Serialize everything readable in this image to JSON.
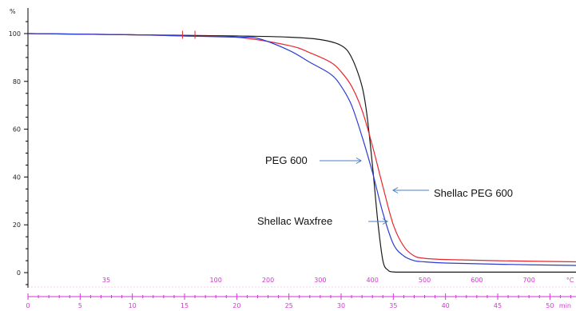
{
  "chart_data": {
    "type": "line",
    "ylabel": "%",
    "xunit": "min",
    "tempunit": "°C",
    "ylim": [
      -10,
      110
    ],
    "xlim": [
      0,
      52.5
    ],
    "yticks": [
      0,
      20,
      40,
      60,
      80,
      100
    ],
    "xticks": [
      0,
      5,
      10,
      15,
      20,
      25,
      30,
      35,
      40,
      45,
      50
    ],
    "temp_ticks": [
      {
        "x": 7.5,
        "label": "35"
      },
      {
        "x": 18,
        "label": "100"
      },
      {
        "x": 23,
        "label": "200"
      },
      {
        "x": 28,
        "label": "300"
      },
      {
        "x": 33,
        "label": "400"
      },
      {
        "x": 38,
        "label": "500"
      },
      {
        "x": 43,
        "label": "600"
      },
      {
        "x": 48,
        "label": "700"
      },
      {
        "x": 52.3,
        "label": "°C"
      }
    ],
    "grid": false,
    "legend": "none",
    "series": [
      {
        "name": "PEG 600",
        "color": "#1a1a1a",
        "x": [
          0,
          10,
          20,
          25,
          28,
          30,
          31,
          32,
          32.5,
          33,
          33.5,
          34,
          34.5,
          35,
          36,
          40,
          45,
          52.5
        ],
        "y": [
          100,
          99.5,
          99,
          98.5,
          97.5,
          95,
          90,
          78,
          65,
          45,
          22,
          5,
          1,
          0.3,
          0.2,
          0.2,
          0.2,
          0.2
        ]
      },
      {
        "name": "Shellac PEG 600",
        "color": "#e8262d",
        "x": [
          0,
          10,
          15,
          20,
          25,
          27,
          29,
          30,
          31,
          32,
          33,
          34,
          35,
          36,
          37,
          38,
          40,
          45,
          52.5
        ],
        "y": [
          100,
          99.5,
          99,
          98.5,
          95,
          92,
          88,
          84,
          78,
          68,
          53,
          36,
          20,
          11,
          7,
          6,
          5.5,
          5,
          4.5
        ]
      },
      {
        "name": "Shellac Waxfree",
        "color": "#2b3bd6",
        "x": [
          0,
          10,
          15,
          20,
          22,
          25,
          27,
          29,
          30,
          31,
          32,
          33,
          34,
          35,
          36,
          37,
          38,
          40,
          45,
          52.5
        ],
        "y": [
          100,
          99.5,
          99,
          98.5,
          98,
          93,
          88,
          83,
          78,
          70,
          57,
          42,
          25,
          12,
          7,
          5,
          4.5,
          4,
          3.5,
          3
        ]
      }
    ],
    "annotations": [
      {
        "text": "PEG 600",
        "target_series": "PEG 600"
      },
      {
        "text": "Shellac PEG 600",
        "target_series": "Shellac PEG 600"
      },
      {
        "text": "Shellac Waxfree",
        "target_series": "Shellac Waxfree"
      }
    ]
  }
}
